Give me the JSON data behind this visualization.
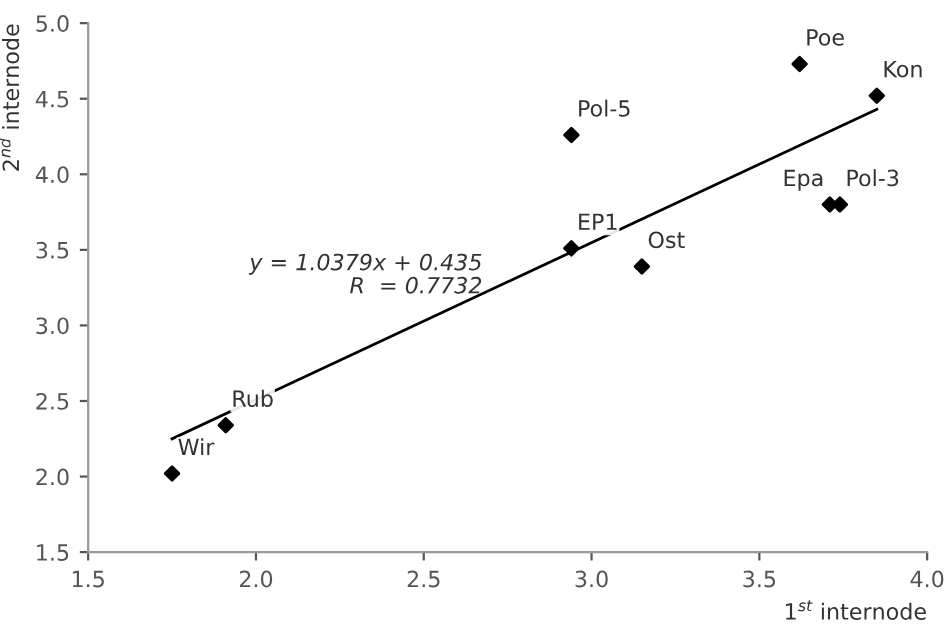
{
  "chart_data": {
    "type": "scatter",
    "xlabel": "1$^{st}$ internode",
    "ylabel": "2$^{nd}$ internode",
    "xlim": [
      1.5,
      4.0
    ],
    "xticks": [
      {
        "value": 1.5,
        "label": "1.5"
      },
      {
        "value": 2.0,
        "label": "2.0"
      },
      {
        "value": 2.5,
        "label": "2.5"
      },
      {
        "value": 3.0,
        "label": "3.0"
      },
      {
        "value": 3.5,
        "label": "3.5"
      },
      {
        "value": 4.0,
        "label": "4.0"
      }
    ],
    "ylim": [
      1.5,
      5.0
    ],
    "yticks": [
      {
        "value": 1.5,
        "label": "1.5"
      },
      {
        "value": 2.0,
        "label": "2.0"
      },
      {
        "value": 2.5,
        "label": "2.5"
      },
      {
        "value": 3.0,
        "label": "3.0"
      },
      {
        "value": 3.5,
        "label": "3.5"
      },
      {
        "value": 4.0,
        "label": "4.0"
      },
      {
        "value": 4.5,
        "label": "4.5"
      },
      {
        "value": 5.0,
        "label": "5.0"
      }
    ],
    "grid": false,
    "legend": false,
    "marker": "diamond",
    "series": [
      {
        "color": "#000000",
        "x": [
          1.75,
          1.91,
          2.94,
          2.94,
          3.15,
          3.62,
          3.85,
          3.71,
          3.74
        ],
        "values": [
          2.02,
          2.34,
          4.26,
          3.51,
          3.39,
          4.73,
          4.52,
          3.8,
          3.8
        ]
      },
      {
        "type": "line",
        "color": "#000000",
        "x": [
          1.75,
          3.85
        ],
        "values": [
          2.25,
          4.43
        ],
        "line_style": "solid",
        "marker": "none"
      }
    ],
    "annotations": [
      {
        "text": "Wir",
        "x": 1.75,
        "y": 2.02
      },
      {
        "text": "Rub",
        "x": 1.91,
        "y": 2.34
      },
      {
        "text": "Pol-5",
        "x": 2.94,
        "y": 4.26
      },
      {
        "text": "EP1",
        "x": 2.94,
        "y": 3.51
      },
      {
        "text": "Ost",
        "x": 3.15,
        "y": 3.39
      },
      {
        "text": "Poe",
        "x": 3.62,
        "y": 4.73
      },
      {
        "text": "Kon",
        "x": 3.85,
        "y": 4.52
      },
      {
        "text": "Epa",
        "x": 3.71,
        "y": 3.8
      },
      {
        "text": "Pol-3",
        "x": 3.74,
        "y": 3.8
      },
      "y = 1.0379x + 0.435\nR  = 0.7732"
    ]
  }
}
